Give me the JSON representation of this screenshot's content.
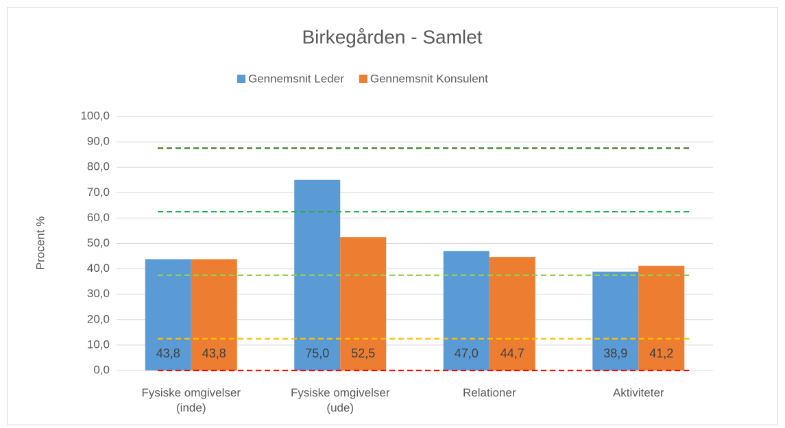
{
  "chart_data": {
    "type": "bar",
    "title": "Birkegården - Samlet",
    "y_axis_label": "Procent %",
    "categories": [
      "Fysiske omgivelser\n(inde)",
      "Fysiske omgivelser\n(ude)",
      "Relationer",
      "Aktiviteter"
    ],
    "series": [
      {
        "name": "Gennemsnit Leder",
        "color": "#5b9bd5",
        "values": [
          43.8,
          75.0,
          47.0,
          38.9
        ],
        "value_labels": [
          "43,8",
          "75,0",
          "47,0",
          "38,9"
        ]
      },
      {
        "name": "Gennemsnit Konsulent",
        "color": "#ed7d31",
        "values": [
          43.8,
          52.5,
          44.7,
          41.2
        ],
        "value_labels": [
          "43,8",
          "52,5",
          "44,7",
          "41,2"
        ]
      }
    ],
    "ylim": [
      0,
      100
    ],
    "yticks": [
      {
        "value": 0,
        "label": "0,0"
      },
      {
        "value": 10,
        "label": "10,0"
      },
      {
        "value": 20,
        "label": "20,0"
      },
      {
        "value": 30,
        "label": "30,0"
      },
      {
        "value": 40,
        "label": "40,0"
      },
      {
        "value": 50,
        "label": "50,0"
      },
      {
        "value": 60,
        "label": "60,0"
      },
      {
        "value": 70,
        "label": "70,0"
      },
      {
        "value": 80,
        "label": "80,0"
      },
      {
        "value": 90,
        "label": "90,0"
      },
      {
        "value": 100,
        "label": "100,0"
      }
    ],
    "grid": true,
    "legend": "top",
    "reference_lines": [
      {
        "value": 87.5,
        "color": "#3a7d22"
      },
      {
        "value": 62.5,
        "color": "#22b04c"
      },
      {
        "value": 37.5,
        "color": "#92d050"
      },
      {
        "value": 12.5,
        "color": "#ffc000"
      },
      {
        "value": 0,
        "color": "#ff0000"
      }
    ]
  }
}
